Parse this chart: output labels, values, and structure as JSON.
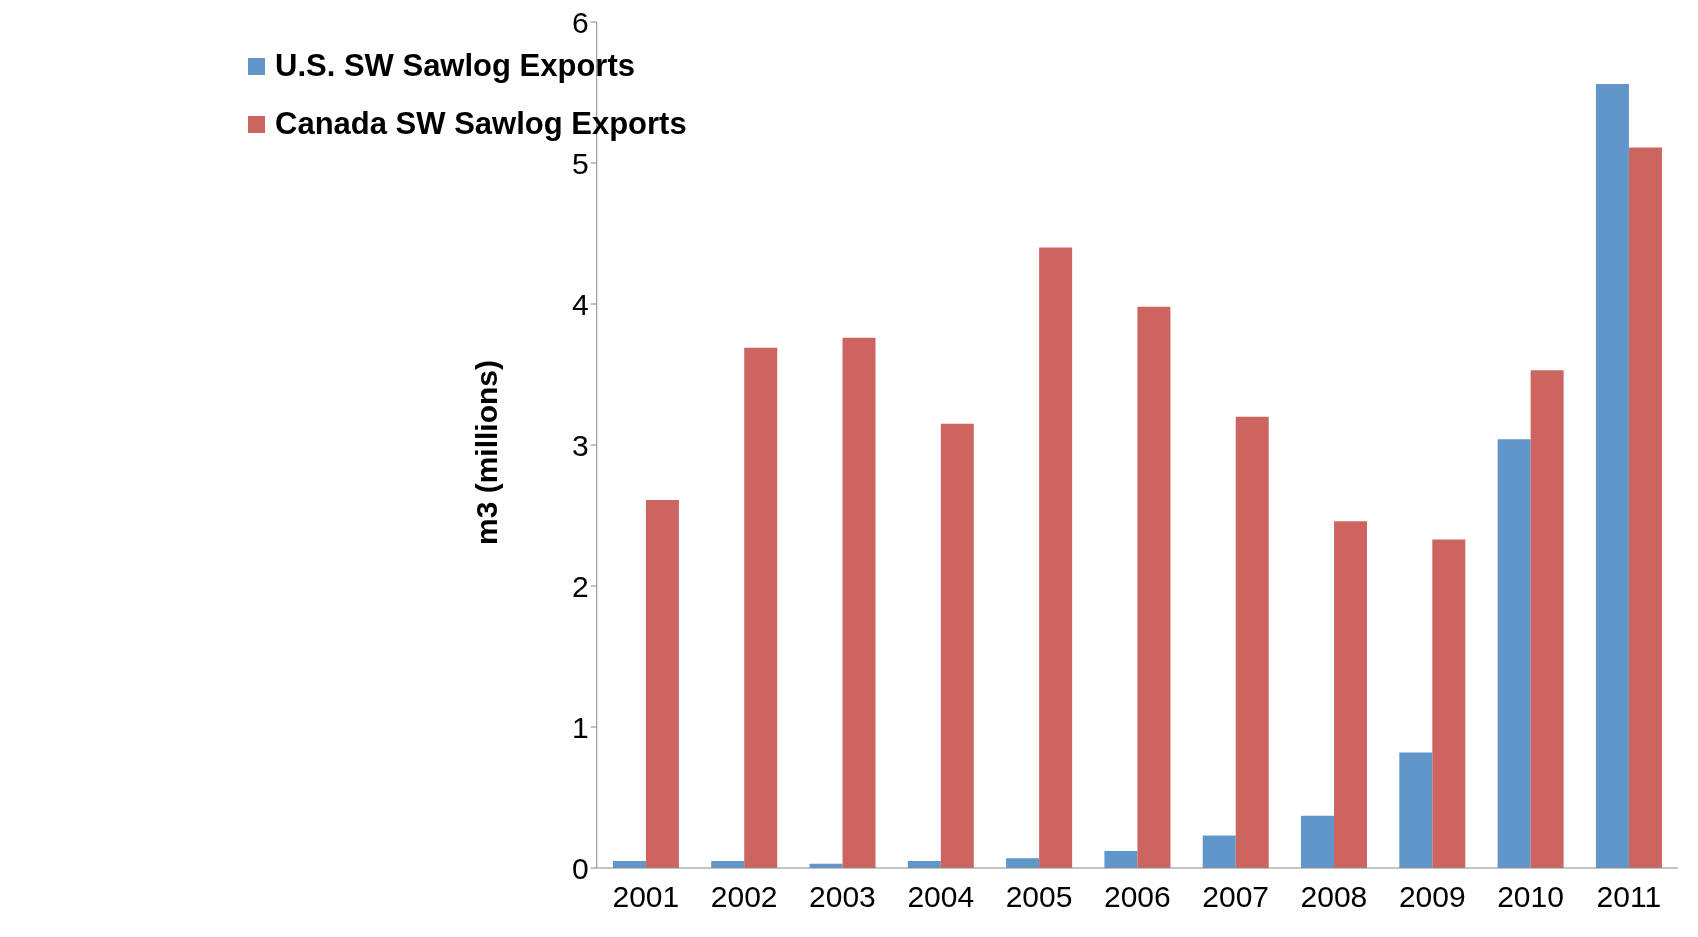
{
  "chart_data": {
    "type": "bar",
    "ylabel": "m3 (millions)",
    "categories": [
      "2001",
      "2002",
      "2003",
      "2004",
      "2005",
      "2006",
      "2007",
      "2008",
      "2009",
      "2010",
      "2011"
    ],
    "series": [
      {
        "name": "U.S. SW Sawlog Exports",
        "color": "#6096c9",
        "values": [
          0.05,
          0.05,
          0.03,
          0.05,
          0.07,
          0.12,
          0.23,
          0.37,
          0.82,
          3.04,
          5.56
        ]
      },
      {
        "name": "Canada SW Sawlog Exports",
        "color": "#cc6560",
        "values": [
          2.61,
          3.69,
          3.76,
          3.15,
          4.4,
          3.98,
          3.2,
          2.46,
          2.33,
          3.53,
          5.11
        ]
      }
    ],
    "ylim": [
      0,
      6
    ],
    "yticks": [
      0,
      1,
      2,
      3,
      4,
      5,
      6
    ],
    "grid": false,
    "legend": "top left"
  }
}
